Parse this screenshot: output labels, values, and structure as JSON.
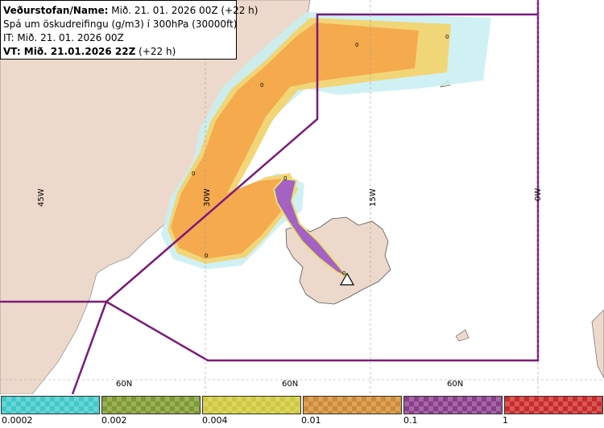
{
  "info": {
    "line1_bold": "Veðurstofan/Name:",
    "line1_rest": " Mið. 21. 01. 2026 00Z (+22 h)",
    "line2": "Spá um öskudreifingu (g/m3) í 300hPa (30000ft)",
    "line3": "IT: Mið. 21. 01. 2026 00Z",
    "line4_bold": "VT: Mið. 21.01.2026 22Z",
    "line4_rest": " (+22 h)"
  },
  "graticule": {
    "lon_labels": [
      "45W",
      "30W",
      "15W",
      "0W"
    ],
    "lat_labels": [
      "60N",
      "60N",
      "60N"
    ]
  },
  "contour_labels": [
    "0",
    "0",
    "0",
    "0",
    "0",
    "0",
    "0"
  ],
  "legend": {
    "ticks": [
      "0.0002",
      "0.002",
      "0.004",
      "0.01",
      "0.1",
      "1"
    ],
    "colors": [
      "#3fc9c9",
      "#7d9a2e",
      "#cfc83a",
      "#cf8a32",
      "#8a3d8a",
      "#cc2a2a"
    ]
  },
  "colors": {
    "land": "#ecd9cb",
    "sea": "#ffffff",
    "ash_low": "#c8eef2",
    "ash_mid": "#f4d36a",
    "ash_orange": "#f5aa4e",
    "ash_purple": "#a562c3",
    "boundary": "#7a1a7a"
  },
  "icons": [
    "volcano-icon"
  ]
}
